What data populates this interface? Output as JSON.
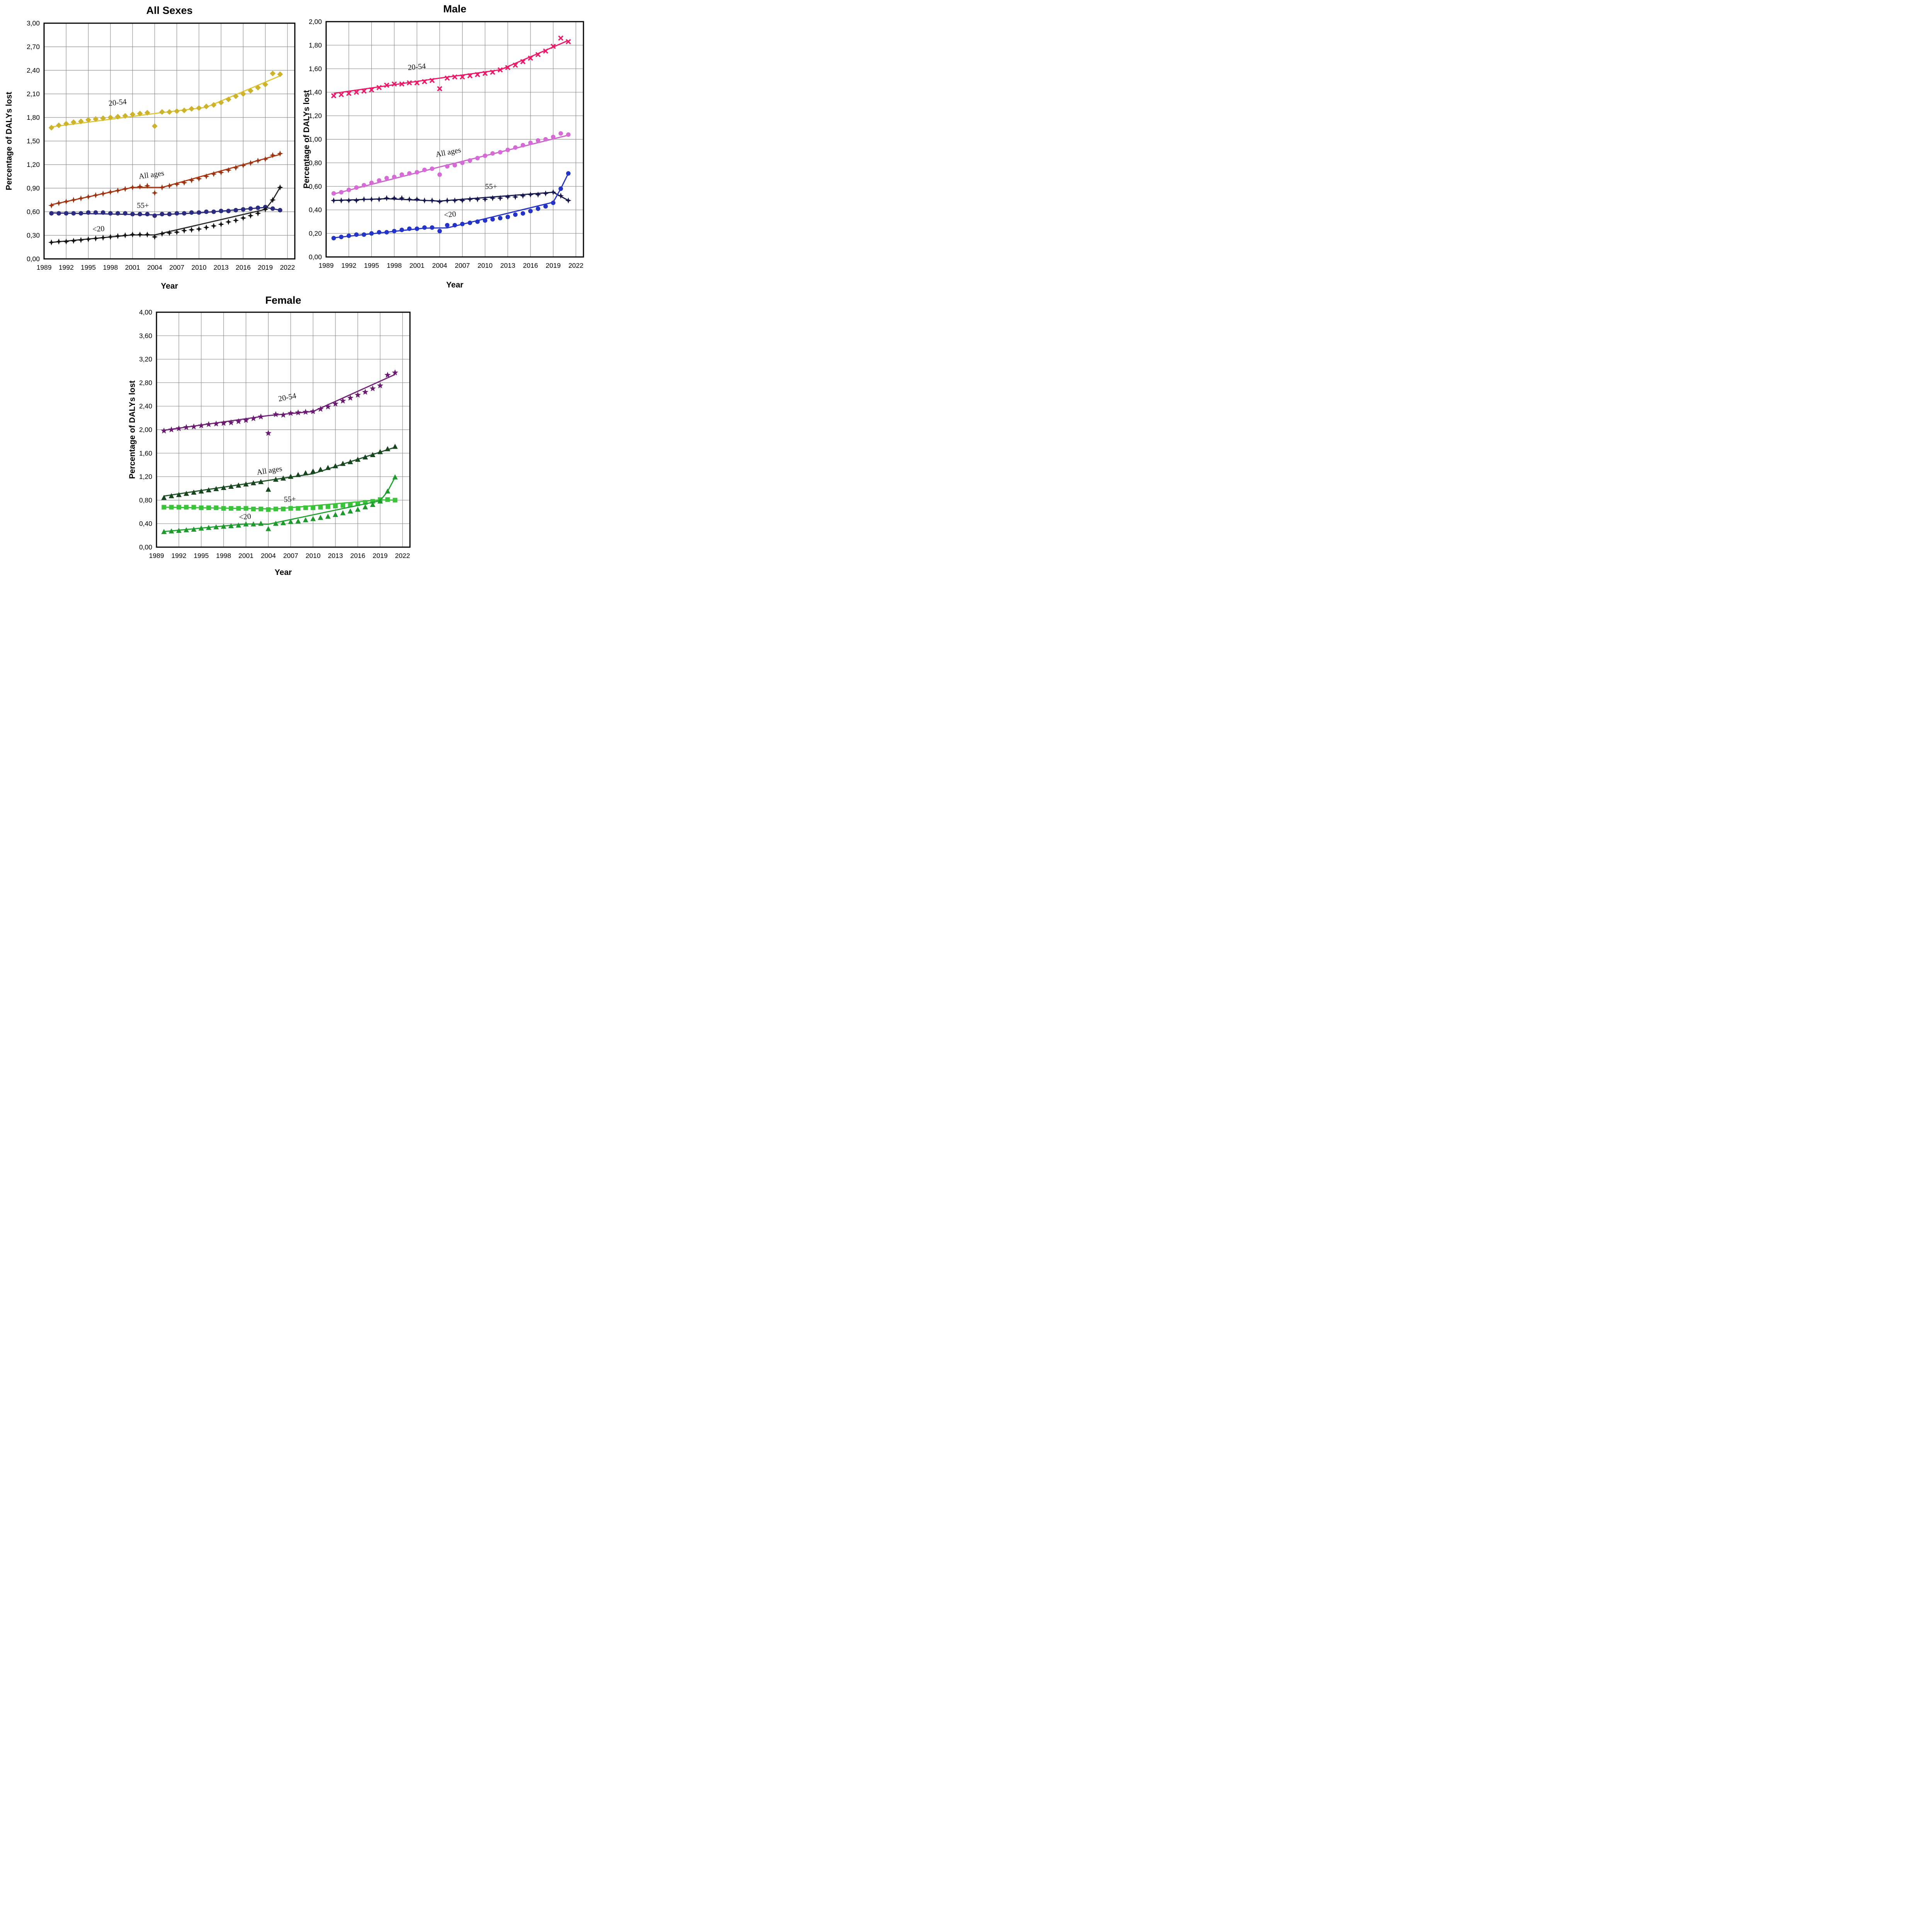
{
  "figure": {
    "y_axis_label": "Percentage of DALYs lost",
    "x_axis_label": "Year",
    "grid_color": "#8d8d8d",
    "frame_color": "#000000",
    "background": "#ffffff"
  },
  "x_axis": {
    "ticks": [
      "1989",
      "1992",
      "1995",
      "1998",
      "2001",
      "2004",
      "2007",
      "2010",
      "2013",
      "2016",
      "2019",
      "2022"
    ],
    "domain": [
      1989,
      2023
    ]
  },
  "data_years": [
    1990,
    1991,
    1992,
    1993,
    1994,
    1995,
    1996,
    1997,
    1998,
    1999,
    2000,
    2001,
    2002,
    2003,
    2004,
    2005,
    2006,
    2007,
    2008,
    2009,
    2010,
    2011,
    2012,
    2013,
    2014,
    2015,
    2016,
    2017,
    2018,
    2019,
    2020,
    2021
  ],
  "chart_data": [
    {
      "id": "all-sexes",
      "type": "line",
      "title": "All Sexes",
      "xlabel": "Year",
      "ylabel": "Percentage of DALYs lost",
      "ylim": [
        0,
        3.0
      ],
      "ystep": 0.3,
      "y_tick_labels": [
        "0,00",
        "0,30",
        "0,60",
        "0,90",
        "1,20",
        "1,50",
        "1,80",
        "2,10",
        "2,40",
        "2,70",
        "3,00"
      ],
      "outlier_year": 2004,
      "series": [
        {
          "name": "20-54",
          "color": "#e0c63a",
          "marker_color": "#cdb22c",
          "marker": "diamond",
          "values": [
            1.67,
            1.7,
            1.72,
            1.74,
            1.75,
            1.77,
            1.78,
            1.79,
            1.8,
            1.81,
            1.82,
            1.84,
            1.85,
            1.86,
            1.69,
            1.87,
            1.87,
            1.88,
            1.89,
            1.91,
            1.92,
            1.94,
            1.96,
            1.99,
            2.03,
            2.07,
            2.1,
            2.14,
            2.18,
            2.22,
            2.36,
            2.35
          ],
          "trend": [
            [
              1990,
              1.68
            ],
            [
              2004,
              1.85
            ],
            [
              2011,
              1.93
            ],
            [
              2021,
              2.33
            ]
          ],
          "annotation": {
            "text": "20-54",
            "x": 1999.0,
            "y": 1.96,
            "rot": -6
          }
        },
        {
          "name": "All ages",
          "color": "#ad3a12",
          "marker_color": "#9d3210",
          "marker": "star4",
          "values": [
            0.68,
            0.71,
            0.73,
            0.75,
            0.77,
            0.79,
            0.81,
            0.83,
            0.85,
            0.87,
            0.89,
            0.91,
            0.92,
            0.93,
            0.84,
            0.91,
            0.93,
            0.95,
            0.97,
            1.0,
            1.02,
            1.05,
            1.08,
            1.1,
            1.13,
            1.16,
            1.19,
            1.22,
            1.25,
            1.27,
            1.32,
            1.34
          ],
          "trend": [
            [
              1990,
              0.69
            ],
            [
              2001,
              0.91
            ],
            [
              2005,
              0.91
            ],
            [
              2021,
              1.33
            ]
          ],
          "annotation": {
            "text": "All ages",
            "x": 2003.6,
            "y": 1.04,
            "rot": -8
          }
        },
        {
          "name": "55+",
          "color": "#2b2b80",
          "marker_color": "#2b2b80",
          "marker": "circle",
          "values": [
            0.58,
            0.58,
            0.58,
            0.58,
            0.58,
            0.59,
            0.59,
            0.59,
            0.58,
            0.58,
            0.58,
            0.57,
            0.57,
            0.57,
            0.55,
            0.57,
            0.57,
            0.58,
            0.58,
            0.59,
            0.59,
            0.6,
            0.6,
            0.61,
            0.61,
            0.62,
            0.63,
            0.64,
            0.65,
            0.66,
            0.64,
            0.62
          ],
          "trend": [
            [
              1990,
              0.585
            ],
            [
              2004,
              0.56
            ],
            [
              2010,
              0.585
            ],
            [
              2019,
              0.655
            ],
            [
              2021,
              0.62
            ]
          ],
          "annotation": {
            "text": "55+",
            "x": 2002.4,
            "y": 0.65,
            "rot": 0
          }
        },
        {
          "name": "<20",
          "color": "#2a2a2a",
          "marker_color": "#111111",
          "marker": "star4",
          "values": [
            0.21,
            0.22,
            0.22,
            0.23,
            0.24,
            0.25,
            0.26,
            0.27,
            0.28,
            0.29,
            0.3,
            0.31,
            0.31,
            0.31,
            0.28,
            0.32,
            0.33,
            0.34,
            0.36,
            0.37,
            0.38,
            0.4,
            0.42,
            0.44,
            0.47,
            0.49,
            0.52,
            0.55,
            0.58,
            0.63,
            0.75,
            0.91
          ],
          "trend": [
            [
              1990,
              0.21
            ],
            [
              2001,
              0.305
            ],
            [
              2004,
              0.305
            ],
            [
              2019,
              0.63
            ],
            [
              2020,
              0.75
            ],
            [
              2021,
              0.91
            ]
          ],
          "annotation": {
            "text": "<20",
            "x": 1996.4,
            "y": 0.35,
            "rot": -4
          }
        }
      ]
    },
    {
      "id": "male",
      "type": "line",
      "title": "Male",
      "xlabel": "Year",
      "ylabel": "Percentage of DALYs lost",
      "ylim": [
        0,
        2.0
      ],
      "ystep": 0.2,
      "y_tick_labels": [
        "0,00",
        "0,20",
        "0,40",
        "0,60",
        "0,80",
        "1,00",
        "1,20",
        "1,40",
        "1,60",
        "1,80",
        "2,00"
      ],
      "outlier_year": 2004,
      "series": [
        {
          "name": "20-54",
          "color": "#ee1767",
          "marker_color": "#ee1767",
          "marker": "cross",
          "values": [
            1.37,
            1.38,
            1.39,
            1.4,
            1.41,
            1.42,
            1.44,
            1.46,
            1.47,
            1.47,
            1.48,
            1.48,
            1.49,
            1.5,
            1.43,
            1.52,
            1.53,
            1.53,
            1.54,
            1.55,
            1.56,
            1.57,
            1.59,
            1.61,
            1.63,
            1.66,
            1.69,
            1.72,
            1.75,
            1.79,
            1.86,
            1.83
          ],
          "trend": [
            [
              1990,
              1.39
            ],
            [
              2004,
              1.52
            ],
            [
              2012,
              1.59
            ],
            [
              2021,
              1.84
            ]
          ],
          "annotation": {
            "text": "20-54",
            "x": 2001.0,
            "y": 1.595,
            "rot": -5
          }
        },
        {
          "name": "All ages",
          "color": "#cd60cd",
          "marker_color": "#d66ad6",
          "marker": "circle",
          "values": [
            0.54,
            0.55,
            0.57,
            0.59,
            0.61,
            0.63,
            0.65,
            0.67,
            0.68,
            0.7,
            0.71,
            0.72,
            0.74,
            0.75,
            0.7,
            0.77,
            0.78,
            0.8,
            0.82,
            0.84,
            0.86,
            0.88,
            0.89,
            0.91,
            0.93,
            0.95,
            0.97,
            0.99,
            1.0,
            1.02,
            1.05,
            1.04
          ],
          "trend": [
            [
              1990,
              0.535
            ],
            [
              2004,
              0.765
            ],
            [
              2021,
              1.035
            ]
          ],
          "annotation": {
            "text": "All ages",
            "x": 2005.2,
            "y": 0.87,
            "rot": -11
          }
        },
        {
          "name": "55+",
          "color": "#16164e",
          "marker_color": "#16164e",
          "marker": "star4",
          "values": [
            0.48,
            0.48,
            0.48,
            0.48,
            0.49,
            0.49,
            0.49,
            0.5,
            0.5,
            0.5,
            0.49,
            0.49,
            0.48,
            0.48,
            0.47,
            0.48,
            0.48,
            0.48,
            0.49,
            0.49,
            0.49,
            0.5,
            0.5,
            0.51,
            0.51,
            0.52,
            0.53,
            0.53,
            0.54,
            0.55,
            0.52,
            0.48
          ],
          "trend": [
            [
              1990,
              0.48
            ],
            [
              1997,
              0.495
            ],
            [
              2004,
              0.475
            ],
            [
              2019,
              0.55
            ],
            [
              2021,
              0.48
            ]
          ],
          "annotation": {
            "text": "55+",
            "x": 2010.8,
            "y": 0.578,
            "rot": 0
          }
        },
        {
          "name": "<20",
          "color": "#2433c8",
          "marker_color": "#2433c8",
          "marker": "circle",
          "values": [
            0.16,
            0.17,
            0.18,
            0.19,
            0.19,
            0.2,
            0.21,
            0.21,
            0.22,
            0.23,
            0.24,
            0.24,
            0.25,
            0.25,
            0.22,
            0.27,
            0.27,
            0.28,
            0.29,
            0.3,
            0.31,
            0.32,
            0.33,
            0.34,
            0.36,
            0.37,
            0.39,
            0.41,
            0.43,
            0.46,
            0.58,
            0.71
          ],
          "trend": [
            [
              1990,
              0.163
            ],
            [
              2002,
              0.245
            ],
            [
              2005,
              0.247
            ],
            [
              2019,
              0.465
            ],
            [
              2020,
              0.58
            ],
            [
              2021,
              0.71
            ]
          ],
          "annotation": {
            "text": "<20",
            "x": 2005.4,
            "y": 0.34,
            "rot": -6
          }
        }
      ]
    },
    {
      "id": "female",
      "type": "line",
      "title": "Female",
      "xlabel": "Year",
      "ylabel": "Percentage of DALYs lost",
      "ylim": [
        0,
        4.0
      ],
      "ystep": 0.4,
      "y_tick_labels": [
        "0,00",
        "0,40",
        "0,80",
        "1,20",
        "1,60",
        "2,00",
        "2,40",
        "2,80",
        "3,20",
        "3,60",
        "4,00"
      ],
      "outlier_year": 2004,
      "series": [
        {
          "name": "20-54",
          "color": "#73207a",
          "marker_color": "#6a1a70",
          "marker": "star5",
          "values": [
            1.98,
            2.0,
            2.02,
            2.04,
            2.05,
            2.07,
            2.09,
            2.1,
            2.11,
            2.12,
            2.14,
            2.16,
            2.19,
            2.22,
            1.94,
            2.26,
            2.25,
            2.28,
            2.29,
            2.3,
            2.31,
            2.35,
            2.39,
            2.44,
            2.49,
            2.54,
            2.59,
            2.64,
            2.7,
            2.75,
            2.93,
            2.97
          ],
          "trend": [
            [
              1990,
              1.99
            ],
            [
              2004,
              2.24
            ],
            [
              2010,
              2.31
            ],
            [
              2021,
              2.94
            ]
          ],
          "annotation": {
            "text": "20-54",
            "x": 2006.6,
            "y": 2.51,
            "rot": -11
          }
        },
        {
          "name": "All ages",
          "color": "#1d5426",
          "marker_color": "#16451e",
          "marker": "triangle",
          "values": [
            0.84,
            0.87,
            0.89,
            0.91,
            0.93,
            0.95,
            0.97,
            0.99,
            1.01,
            1.03,
            1.05,
            1.07,
            1.09,
            1.11,
            0.98,
            1.15,
            1.17,
            1.2,
            1.23,
            1.26,
            1.29,
            1.32,
            1.35,
            1.38,
            1.42,
            1.45,
            1.49,
            1.53,
            1.57,
            1.62,
            1.67,
            1.71
          ],
          "trend": [
            [
              1990,
              0.87
            ],
            [
              2010,
              1.25
            ],
            [
              2021,
              1.7
            ]
          ],
          "annotation": {
            "text": "All ages",
            "x": 2004.2,
            "y": 1.265,
            "rot": -9
          }
        },
        {
          "name": "55+",
          "color": "#36bd36",
          "marker_color": "#3ac43a",
          "marker": "square",
          "values": [
            0.68,
            0.68,
            0.68,
            0.68,
            0.68,
            0.67,
            0.67,
            0.67,
            0.66,
            0.66,
            0.66,
            0.66,
            0.65,
            0.65,
            0.64,
            0.65,
            0.65,
            0.66,
            0.66,
            0.67,
            0.67,
            0.68,
            0.69,
            0.7,
            0.71,
            0.72,
            0.74,
            0.76,
            0.78,
            0.81,
            0.81,
            0.8
          ],
          "trend": [
            [
              1990,
              0.68
            ],
            [
              2005,
              0.65
            ],
            [
              2019,
              0.805
            ],
            [
              2021,
              0.8
            ]
          ],
          "annotation": {
            "text": "55+",
            "x": 2006.9,
            "y": 0.775,
            "rot": -3
          }
        },
        {
          "name": "<20",
          "color": "#20a22e",
          "marker_color": "#1d9a2b",
          "marker": "triangle",
          "values": [
            0.26,
            0.27,
            0.28,
            0.29,
            0.3,
            0.32,
            0.33,
            0.34,
            0.35,
            0.36,
            0.37,
            0.39,
            0.39,
            0.4,
            0.31,
            0.4,
            0.41,
            0.43,
            0.44,
            0.46,
            0.48,
            0.5,
            0.52,
            0.55,
            0.58,
            0.61,
            0.64,
            0.68,
            0.72,
            0.78,
            0.95,
            1.19
          ],
          "trend": [
            [
              1990,
              0.265
            ],
            [
              2001,
              0.395
            ],
            [
              2004,
              0.39
            ],
            [
              2019,
              0.79
            ],
            [
              2020,
              0.95
            ],
            [
              2021,
              1.19
            ]
          ],
          "annotation": {
            "text": "<20",
            "x": 2000.9,
            "y": 0.475,
            "rot": -5
          }
        }
      ]
    }
  ]
}
